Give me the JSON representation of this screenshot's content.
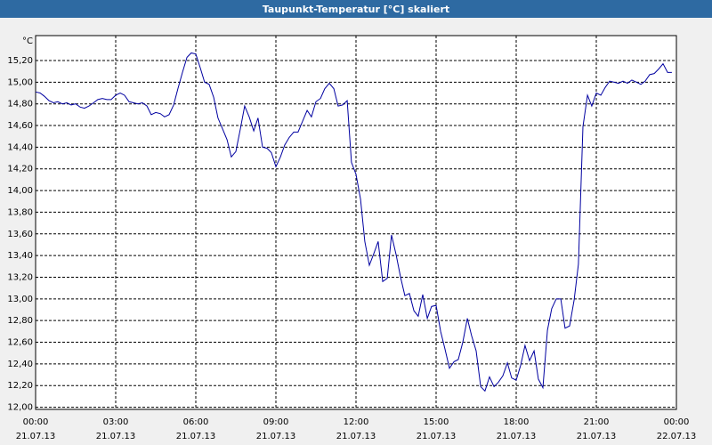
{
  "chart_data": {
    "type": "line",
    "title": "Taupunkt-Temperatur [°C] skaliert",
    "ylabel": "°C",
    "color": "#0000a0",
    "grid": true,
    "xlim": [
      0,
      24
    ],
    "xticks": [
      {
        "value": 0,
        "label": "00:00",
        "date": "21.07.13"
      },
      {
        "value": 3,
        "label": "03:00",
        "date": "21.07.13"
      },
      {
        "value": 6,
        "label": "06:00",
        "date": "21.07.13"
      },
      {
        "value": 9,
        "label": "09:00",
        "date": "21.07.13"
      },
      {
        "value": 12,
        "label": "12:00",
        "date": "21.07.13"
      },
      {
        "value": 15,
        "label": "15:00",
        "date": "21.07.13"
      },
      {
        "value": 18,
        "label": "18:00",
        "date": "21.07.13"
      },
      {
        "value": 21,
        "label": "21:00",
        "date": "21.07.13"
      },
      {
        "value": 24,
        "label": "00:00",
        "date": "22.07.13"
      }
    ],
    "ylim": [
      11.98,
      15.43
    ],
    "yticks": [
      {
        "value": 12,
        "label": "12,00"
      },
      {
        "value": 12.2,
        "label": "12,20"
      },
      {
        "value": 12.4,
        "label": "12,40"
      },
      {
        "value": 12.6,
        "label": "12,60"
      },
      {
        "value": 12.8,
        "label": "12,80"
      },
      {
        "value": 13,
        "label": "13,00"
      },
      {
        "value": 13.2,
        "label": "13,20"
      },
      {
        "value": 13.4,
        "label": "13,40"
      },
      {
        "value": 13.6,
        "label": "13,60"
      },
      {
        "value": 13.8,
        "label": "13,80"
      },
      {
        "value": 14,
        "label": "14,00"
      },
      {
        "value": 14.2,
        "label": "14,20"
      },
      {
        "value": 14.4,
        "label": "14,40"
      },
      {
        "value": 14.6,
        "label": "14,60"
      },
      {
        "value": 14.8,
        "label": "14,80"
      },
      {
        "value": 15,
        "label": "15,00"
      },
      {
        "value": 15.2,
        "label": "15,20"
      }
    ],
    "x": [
      0,
      0.17,
      0.33,
      0.5,
      0.67,
      0.83,
      1,
      1.17,
      1.33,
      1.5,
      1.67,
      1.83,
      2,
      2.17,
      2.33,
      2.5,
      2.67,
      2.83,
      3,
      3.17,
      3.33,
      3.5,
      3.67,
      3.83,
      4,
      4.17,
      4.33,
      4.5,
      4.67,
      4.83,
      5,
      5.17,
      5.33,
      5.5,
      5.67,
      5.83,
      6,
      6.17,
      6.33,
      6.5,
      6.67,
      6.83,
      7,
      7.17,
      7.33,
      7.5,
      7.67,
      7.83,
      8,
      8.17,
      8.33,
      8.5,
      8.67,
      8.83,
      9,
      9.17,
      9.33,
      9.5,
      9.67,
      9.83,
      10,
      10.17,
      10.33,
      10.5,
      10.67,
      10.83,
      11,
      11.17,
      11.33,
      11.5,
      11.67,
      11.83,
      12,
      12.17,
      12.33,
      12.5,
      12.67,
      12.83,
      13,
      13.17,
      13.33,
      13.5,
      13.67,
      13.83,
      14,
      14.17,
      14.33,
      14.5,
      14.67,
      14.83,
      15,
      15.17,
      15.33,
      15.5,
      15.67,
      15.83,
      16,
      16.17,
      16.33,
      16.5,
      16.67,
      16.83,
      17,
      17.17,
      17.33,
      17.5,
      17.67,
      17.83,
      18,
      18.17,
      18.33,
      18.5,
      18.67,
      18.83,
      19,
      19.17,
      19.33,
      19.5,
      19.67,
      19.83,
      20,
      20.17,
      20.33,
      20.5,
      20.67,
      20.83,
      21,
      21.17,
      21.33,
      21.5,
      21.67,
      21.83,
      22,
      22.17,
      22.33,
      22.5,
      22.67,
      22.83,
      23,
      23.17,
      23.33,
      23.5,
      23.67,
      23.83
    ],
    "values": [
      14.91,
      14.9,
      14.87,
      14.83,
      14.81,
      14.82,
      14.8,
      14.81,
      14.79,
      14.8,
      14.77,
      14.76,
      14.78,
      14.81,
      14.84,
      14.85,
      14.84,
      14.84,
      14.88,
      14.9,
      14.88,
      14.82,
      14.81,
      14.8,
      14.81,
      14.78,
      14.7,
      14.72,
      14.71,
      14.68,
      14.7,
      14.79,
      14.94,
      15.09,
      15.23,
      15.27,
      15.26,
      15.13,
      15.0,
      14.98,
      14.86,
      14.67,
      14.57,
      14.47,
      14.31,
      14.36,
      14.57,
      14.78,
      14.68,
      14.55,
      14.67,
      14.4,
      14.39,
      14.35,
      14.22,
      14.31,
      14.42,
      14.49,
      14.54,
      14.54,
      14.64,
      14.74,
      14.68,
      14.82,
      14.85,
      14.94,
      14.99,
      14.94,
      14.78,
      14.79,
      14.83,
      14.26,
      14.15,
      13.92,
      13.53,
      13.31,
      13.42,
      13.53,
      13.16,
      13.19,
      13.59,
      13.41,
      13.2,
      13.03,
      13.05,
      12.89,
      12.84,
      13.04,
      12.82,
      12.93,
      12.94,
      12.7,
      12.54,
      12.36,
      12.42,
      12.44,
      12.6,
      12.82,
      12.66,
      12.52,
      12.19,
      12.15,
      12.28,
      12.19,
      12.23,
      12.29,
      12.41,
      12.27,
      12.25,
      12.39,
      12.57,
      12.43,
      12.52,
      12.26,
      12.18,
      12.71,
      12.91,
      13.0,
      13.0,
      12.73,
      12.75,
      12.99,
      13.32,
      14.59,
      14.88,
      14.78,
      14.9,
      14.88,
      14.95,
      15.01,
      15.0,
      14.99,
      15.01,
      14.99,
      15.02,
      15.0,
      14.98,
      15.01,
      15.07,
      15.08,
      15.12,
      15.17,
      15.09,
      15.09
    ]
  }
}
